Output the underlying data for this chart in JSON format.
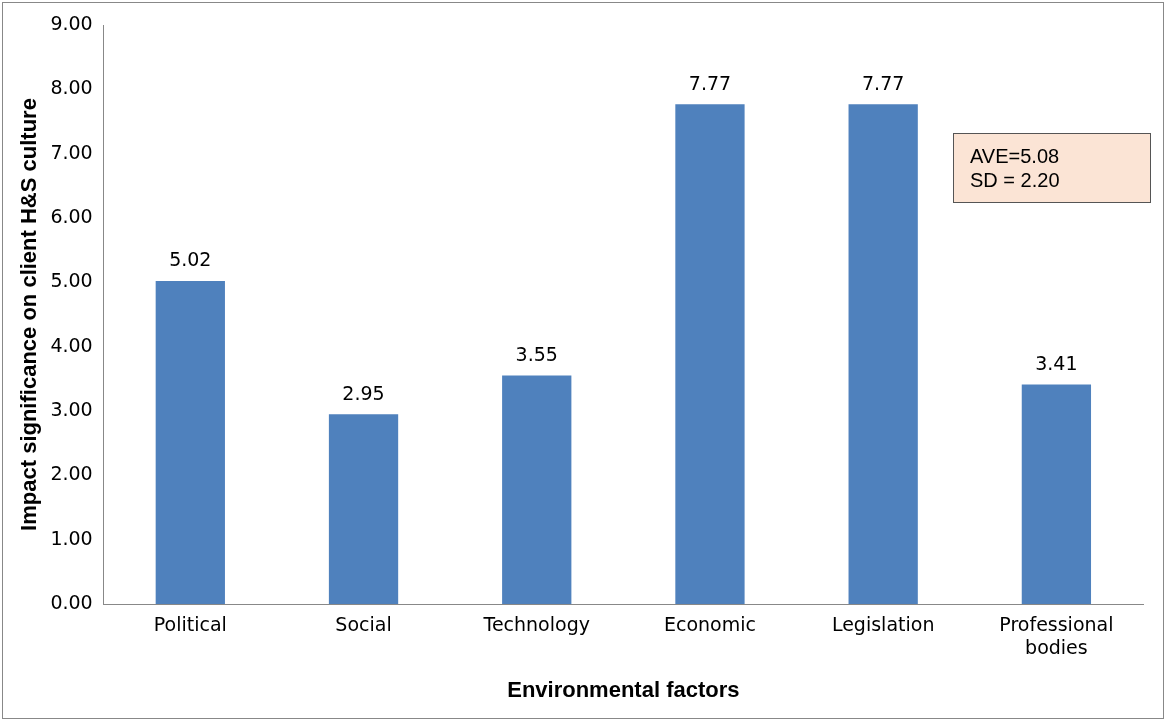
{
  "chart_data": {
    "type": "bar",
    "xlabel": "Environmental factors",
    "ylabel": "Impact significance on client H&S culture",
    "categories": [
      "Political",
      "Social",
      "Technology",
      "Economic",
      "Legislation",
      "Professional bodies"
    ],
    "values": [
      5.02,
      2.95,
      3.55,
      7.77,
      7.77,
      3.41
    ],
    "color": "#4f81bd",
    "ylim": [
      0,
      9
    ],
    "yticks": [
      {
        "value": 0,
        "label": "0.00"
      },
      {
        "value": 1,
        "label": "1.00"
      },
      {
        "value": 2,
        "label": "2.00"
      },
      {
        "value": 3,
        "label": "3.00"
      },
      {
        "value": 4,
        "label": "4.00"
      },
      {
        "value": 5,
        "label": "5.00"
      },
      {
        "value": 6,
        "label": "6.00"
      },
      {
        "value": 7,
        "label": "7.00"
      },
      {
        "value": 8,
        "label": "8.00"
      },
      {
        "value": 9,
        "label": "9.00"
      }
    ],
    "data_labels": true,
    "grid": false,
    "annotations": [
      "AVE=5.08",
      "SD = 2.20"
    ]
  }
}
